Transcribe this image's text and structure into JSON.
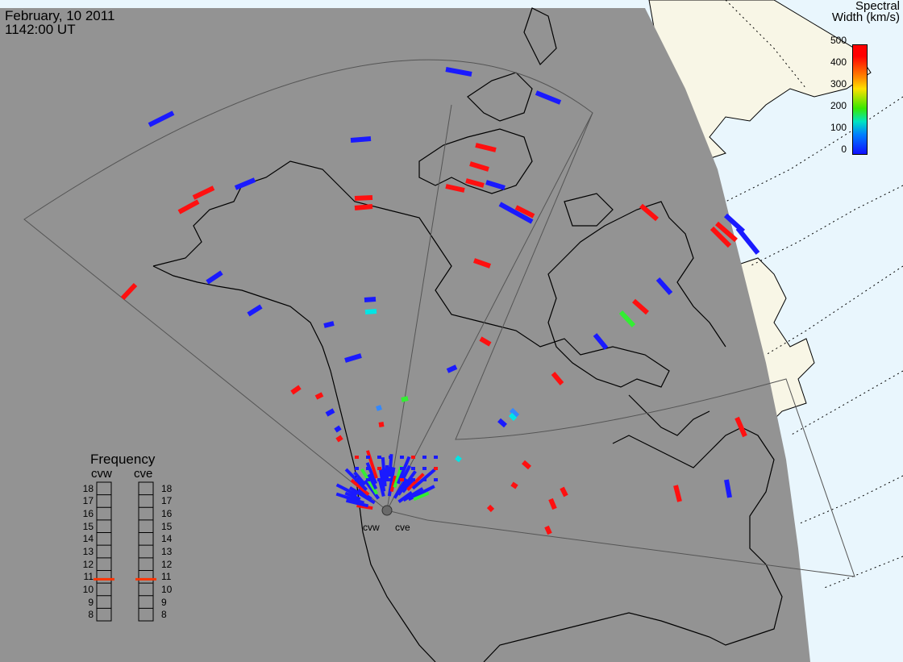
{
  "header": {
    "date": "February, 10 2011",
    "time": "1142:00 UT"
  },
  "colorbar": {
    "title_line1": "Spectral",
    "title_line2": "Width (km/s)",
    "ticks": [
      "500",
      "400",
      "300",
      "200",
      "100",
      "0"
    ]
  },
  "frequency_panel": {
    "title": "Frequency",
    "radars": [
      "cvw",
      "cve"
    ],
    "scale": [
      "18",
      "17",
      "16",
      "15",
      "14",
      "13",
      "12",
      "11",
      "10",
      "9",
      "8"
    ],
    "cvw_frequency": 10.8,
    "cve_frequency": 10.8,
    "indicator_color": "#ff3300"
  },
  "stations": [
    {
      "label": "cvw"
    },
    {
      "label": "cve"
    }
  ],
  "colors": {
    "night": "#939393",
    "day": "#e9f6fd",
    "land_day": "#f8f6e6",
    "coast": "#000000"
  },
  "map": {
    "features": [
      "coastline",
      "fields-of-view",
      "night-terminator",
      "magnetic-latitude-grid"
    ]
  }
}
